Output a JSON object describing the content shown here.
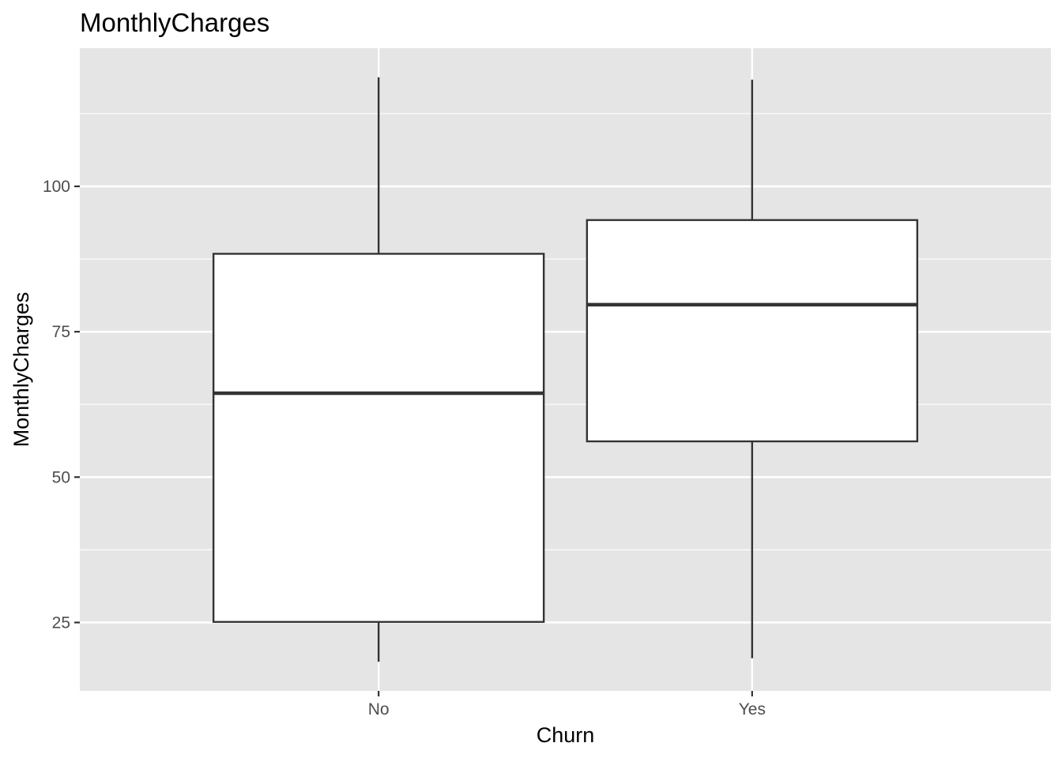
{
  "chart_data": {
    "type": "boxplot",
    "title": "MonthlyCharges",
    "xlabel": "Churn",
    "ylabel": "MonthlyCharges",
    "categories": [
      "No",
      "Yes"
    ],
    "boxes": [
      {
        "category": "No",
        "whisker_low": 18.25,
        "q1": 25.1,
        "median": 64.43,
        "q3": 88.4,
        "whisker_high": 118.75
      },
      {
        "category": "Yes",
        "whisker_low": 18.85,
        "q1": 56.15,
        "median": 79.65,
        "q3": 94.2,
        "whisker_high": 118.35
      }
    ],
    "yticks": [
      25,
      50,
      75,
      100
    ],
    "ylim": [
      13.24,
      123.76
    ],
    "grid": true,
    "colors": {
      "panel": "#e5e5e5",
      "grid": "#ffffff",
      "box_fill": "#ffffff",
      "box_line": "#333333",
      "tick_text": "#4d4d4d"
    }
  }
}
